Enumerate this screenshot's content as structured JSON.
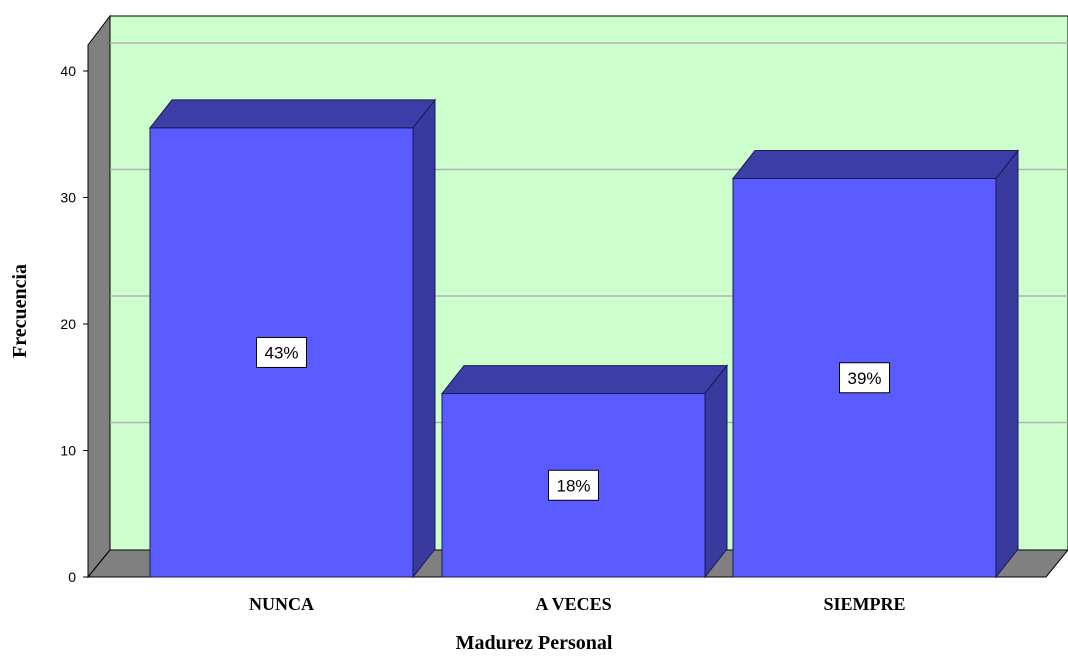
{
  "chart_data": {
    "type": "bar",
    "categories": [
      "NUNCA",
      "A VECES",
      "SIEMPRE"
    ],
    "values": [
      35.5,
      14.5,
      31.5
    ],
    "data_labels": [
      "43%",
      "18%",
      "39%"
    ],
    "xlabel": "Madurez Personal",
    "ylabel": "Frecuencia",
    "ylim": [
      0,
      40
    ],
    "yticks": [
      0,
      10,
      20,
      30,
      40
    ],
    "grid": true,
    "style": "3d",
    "colors": {
      "bar_front": "#5a5cff",
      "bar_side": "#383a9e",
      "bar_top": "#3b3ea6",
      "wall": "#ccffcc",
      "wall_side": "#808080",
      "floor": "#808080",
      "grid": "#b4b4b4"
    }
  }
}
